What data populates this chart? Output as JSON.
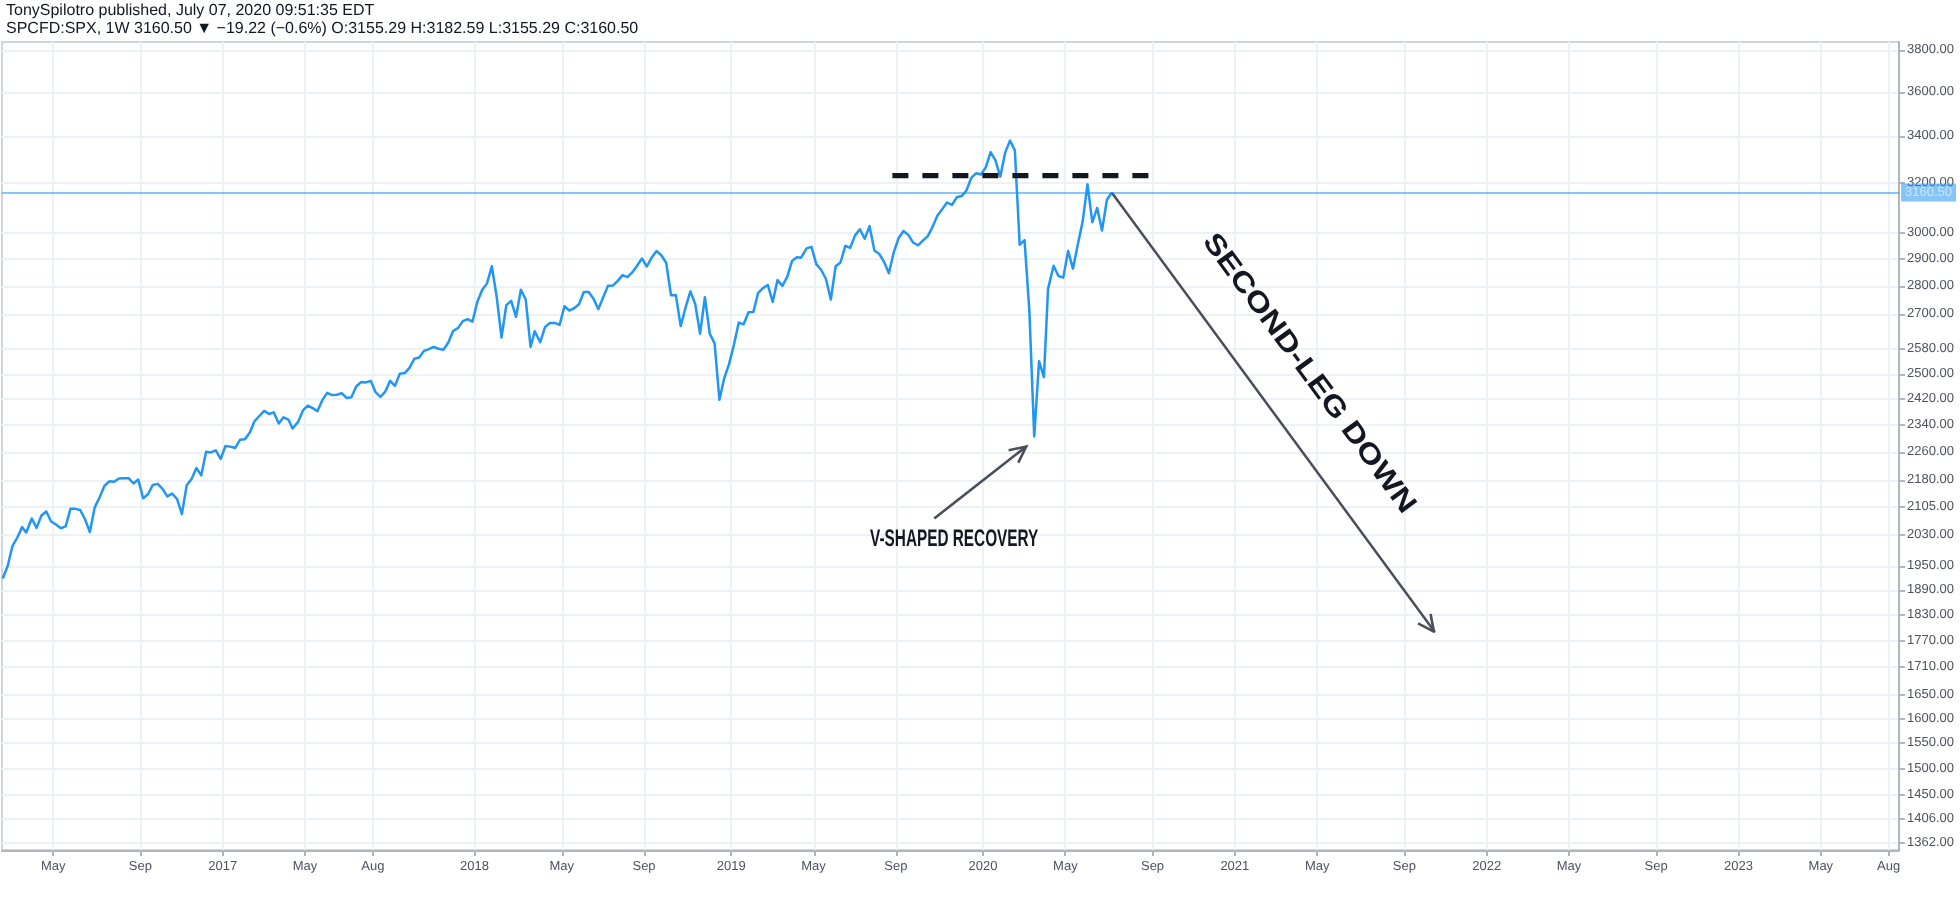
{
  "chart_data": {
    "type": "line",
    "title": "TonySpilotro published, July 07, 2020 09:51:35 EDT",
    "subtitle": "SPCFD:SPX, 1W 3160.50 ▼ −19.22 (−0.6%) O:3155.29 H:3182.59 L:3155.29 C:3160.50",
    "log": "y",
    "grid": true,
    "x": [
      "2016-02-19",
      "2016-02-26",
      "2016-03-04",
      "2016-03-11",
      "2016-03-18",
      "2016-03-24",
      "2016-04-01",
      "2016-04-08",
      "2016-04-15",
      "2016-04-22",
      "2016-04-29",
      "2016-05-06",
      "2016-05-13",
      "2016-05-20",
      "2016-05-27",
      "2016-06-03",
      "2016-06-10",
      "2016-06-17",
      "2016-06-24",
      "2016-07-01",
      "2016-07-08",
      "2016-07-15",
      "2016-07-22",
      "2016-07-29",
      "2016-08-05",
      "2016-08-12",
      "2016-08-19",
      "2016-08-26",
      "2016-09-02",
      "2016-09-09",
      "2016-09-16",
      "2016-09-23",
      "2016-09-30",
      "2016-10-07",
      "2016-10-14",
      "2016-10-21",
      "2016-10-28",
      "2016-11-04",
      "2016-11-11",
      "2016-11-18",
      "2016-11-25",
      "2016-12-02",
      "2016-12-09",
      "2016-12-16",
      "2016-12-23",
      "2016-12-30",
      "2017-01-06",
      "2017-01-13",
      "2017-01-20",
      "2017-01-27",
      "2017-02-03",
      "2017-02-10",
      "2017-02-17",
      "2017-02-24",
      "2017-03-03",
      "2017-03-10",
      "2017-03-17",
      "2017-03-24",
      "2017-03-31",
      "2017-04-07",
      "2017-04-13",
      "2017-04-21",
      "2017-04-28",
      "2017-05-05",
      "2017-05-12",
      "2017-05-19",
      "2017-05-26",
      "2017-06-02",
      "2017-06-09",
      "2017-06-16",
      "2017-06-23",
      "2017-06-30",
      "2017-07-07",
      "2017-07-14",
      "2017-07-21",
      "2017-07-28",
      "2017-08-04",
      "2017-08-11",
      "2017-08-18",
      "2017-08-25",
      "2017-09-01",
      "2017-09-08",
      "2017-09-15",
      "2017-09-22",
      "2017-09-29",
      "2017-10-06",
      "2017-10-13",
      "2017-10-20",
      "2017-10-27",
      "2017-11-03",
      "2017-11-10",
      "2017-11-17",
      "2017-11-24",
      "2017-12-01",
      "2017-12-08",
      "2017-12-15",
      "2017-12-22",
      "2017-12-29",
      "2018-01-05",
      "2018-01-12",
      "2018-01-19",
      "2018-01-26",
      "2018-02-02",
      "2018-02-09",
      "2018-02-16",
      "2018-02-23",
      "2018-03-02",
      "2018-03-09",
      "2018-03-16",
      "2018-03-23",
      "2018-03-29",
      "2018-04-06",
      "2018-04-13",
      "2018-04-20",
      "2018-04-27",
      "2018-05-04",
      "2018-05-11",
      "2018-05-18",
      "2018-05-25",
      "2018-06-01",
      "2018-06-08",
      "2018-06-15",
      "2018-06-22",
      "2018-06-29",
      "2018-07-06",
      "2018-07-13",
      "2018-07-20",
      "2018-07-27",
      "2018-08-03",
      "2018-08-10",
      "2018-08-17",
      "2018-08-24",
      "2018-08-31",
      "2018-09-07",
      "2018-09-14",
      "2018-09-21",
      "2018-09-28",
      "2018-10-05",
      "2018-10-12",
      "2018-10-19",
      "2018-10-26",
      "2018-11-02",
      "2018-11-09",
      "2018-11-16",
      "2018-11-23",
      "2018-11-30",
      "2018-12-07",
      "2018-12-14",
      "2018-12-21",
      "2018-12-28",
      "2019-01-04",
      "2019-01-11",
      "2019-01-18",
      "2019-01-25",
      "2019-02-01",
      "2019-02-08",
      "2019-02-15",
      "2019-02-22",
      "2019-03-01",
      "2019-03-08",
      "2019-03-15",
      "2019-03-22",
      "2019-03-29",
      "2019-04-05",
      "2019-04-12",
      "2019-04-18",
      "2019-04-26",
      "2019-05-03",
      "2019-05-10",
      "2019-05-17",
      "2019-05-24",
      "2019-05-31",
      "2019-06-07",
      "2019-06-14",
      "2019-06-21",
      "2019-06-28",
      "2019-07-05",
      "2019-07-12",
      "2019-07-19",
      "2019-07-26",
      "2019-08-02",
      "2019-08-09",
      "2019-08-16",
      "2019-08-23",
      "2019-08-30",
      "2019-09-06",
      "2019-09-13",
      "2019-09-20",
      "2019-09-27",
      "2019-10-04",
      "2019-10-11",
      "2019-10-18",
      "2019-10-25",
      "2019-11-01",
      "2019-11-08",
      "2019-11-15",
      "2019-11-22",
      "2019-11-29",
      "2019-12-06",
      "2019-12-13",
      "2019-12-20",
      "2019-12-27",
      "2020-01-03",
      "2020-01-10",
      "2020-01-17",
      "2020-01-24",
      "2020-01-31",
      "2020-02-07",
      "2020-02-14",
      "2020-02-21",
      "2020-02-28",
      "2020-03-06",
      "2020-03-13",
      "2020-03-20",
      "2020-03-27",
      "2020-04-03",
      "2020-04-09",
      "2020-04-17",
      "2020-04-24",
      "2020-05-01",
      "2020-05-08",
      "2020-05-15",
      "2020-05-22",
      "2020-05-29",
      "2020-06-05",
      "2020-06-12",
      "2020-06-19",
      "2020-06-26",
      "2020-07-03",
      "2020-07-10"
    ],
    "series": [
      {
        "color": "#2196f3",
        "values": [
          1918,
          1948,
          2000,
          2022,
          2050,
          2036,
          2073,
          2048,
          2081,
          2092,
          2065,
          2057,
          2047,
          2052,
          2099,
          2099,
          2096,
          2071,
          2037,
          2103,
          2130,
          2162,
          2175,
          2174,
          2183,
          2184,
          2184,
          2169,
          2180,
          2128,
          2139,
          2165,
          2168,
          2154,
          2133,
          2141,
          2126,
          2085,
          2164,
          2182,
          2213,
          2192,
          2260,
          2258,
          2264,
          2239,
          2277,
          2275,
          2271,
          2295,
          2297,
          2316,
          2351,
          2367,
          2383,
          2373,
          2378,
          2344,
          2363,
          2356,
          2329,
          2349,
          2384,
          2399,
          2391,
          2382,
          2416,
          2439,
          2432,
          2433,
          2438,
          2423,
          2425,
          2459,
          2473,
          2472,
          2477,
          2441,
          2426,
          2443,
          2477,
          2461,
          2500,
          2502,
          2519,
          2549,
          2553,
          2575,
          2581,
          2588,
          2582,
          2579,
          2602,
          2642,
          2652,
          2676,
          2683,
          2674,
          2743,
          2786,
          2810,
          2873,
          2762,
          2620,
          2732,
          2747,
          2691,
          2787,
          2752,
          2588,
          2641,
          2604,
          2656,
          2670,
          2670,
          2663,
          2728,
          2713,
          2721,
          2735,
          2779,
          2779,
          2755,
          2718,
          2760,
          2801,
          2802,
          2819,
          2840,
          2833,
          2850,
          2875,
          2902,
          2872,
          2905,
          2930,
          2914,
          2886,
          2767,
          2768,
          2659,
          2723,
          2781,
          2736,
          2633,
          2760,
          2633,
          2600,
          2417,
          2486,
          2532,
          2596,
          2671,
          2665,
          2707,
          2708,
          2776,
          2793,
          2804,
          2743,
          2822,
          2801,
          2834,
          2893,
          2907,
          2905,
          2940,
          2946,
          2881,
          2860,
          2826,
          2752,
          2873,
          2887,
          2950,
          2942,
          2990,
          3014,
          2977,
          3026,
          2932,
          2919,
          2889,
          2847,
          2926,
          2979,
          3007,
          2992,
          2962,
          2952,
          2970,
          2986,
          3023,
          3067,
          3093,
          3120,
          3110,
          3141,
          3146,
          3169,
          3221,
          3240,
          3235,
          3265,
          3330,
          3295,
          3226,
          3328,
          3380,
          3338,
          2954,
          2972,
          2711,
          2305,
          2541,
          2489,
          2790,
          2875,
          2837,
          2831,
          2930,
          2864,
          2955,
          3044,
          3194,
          3041,
          3098,
          3009,
          3130,
          3160.5
        ]
      },
      {
        "type": "line",
        "x": [
          "2019-08-28",
          "2020-09-05"
        ],
        "values": [
          3230,
          3230
        ],
        "color": "#131722",
        "line_style": "dashed"
      },
      {
        "type": "line",
        "x": [
          "2020-07-10",
          "2021-10-20"
        ],
        "values": [
          3160.5,
          1790
        ],
        "color": "#4a4e59"
      }
    ],
    "xlim": [
      "2016-02-18",
      "2023-08-22"
    ],
    "xticks": [
      {
        "value": "2016-05-02",
        "label": "May"
      },
      {
        "value": "2016-09-05",
        "label": "Sep"
      },
      {
        "value": "2017-01-02",
        "label": "2017"
      },
      {
        "value": "2017-05-01",
        "label": "May"
      },
      {
        "value": "2017-08-07",
        "label": "Aug"
      },
      {
        "value": "2018-01-01",
        "label": "2018"
      },
      {
        "value": "2018-05-07",
        "label": "May"
      },
      {
        "value": "2018-09-03",
        "label": "Sep"
      },
      {
        "value": "2019-01-07",
        "label": "2019"
      },
      {
        "value": "2019-05-06",
        "label": "May"
      },
      {
        "value": "2019-09-02",
        "label": "Sep"
      },
      {
        "value": "2020-01-06",
        "label": "2020"
      },
      {
        "value": "2020-05-04",
        "label": "May"
      },
      {
        "value": "2020-09-07",
        "label": "Sep"
      },
      {
        "value": "2021-01-04",
        "label": "2021"
      },
      {
        "value": "2021-05-03",
        "label": "May"
      },
      {
        "value": "2021-09-06",
        "label": "Sep"
      },
      {
        "value": "2022-01-03",
        "label": "2022"
      },
      {
        "value": "2022-05-02",
        "label": "May"
      },
      {
        "value": "2022-09-05",
        "label": "Sep"
      },
      {
        "value": "2023-01-02",
        "label": "2023"
      },
      {
        "value": "2023-05-01",
        "label": "May"
      },
      {
        "value": "2023-08-07",
        "label": "Aug"
      }
    ],
    "ylim": [
      1350,
      3840
    ],
    "yticks": [
      {
        "value": 3800,
        "label": "3800.00"
      },
      {
        "value": 3600,
        "label": "3600.00"
      },
      {
        "value": 3400,
        "label": "3400.00"
      },
      {
        "value": 3200,
        "label": "3200.00"
      },
      {
        "value": 3000,
        "label": "3000.00"
      },
      {
        "value": 2900,
        "label": "2900.00"
      },
      {
        "value": 2800,
        "label": "2800.00"
      },
      {
        "value": 2700,
        "label": "2700.00"
      },
      {
        "value": 2580,
        "label": "2580.00"
      },
      {
        "value": 2500,
        "label": "2500.00"
      },
      {
        "value": 2420,
        "label": "2420.00"
      },
      {
        "value": 2340,
        "label": "2340.00"
      },
      {
        "value": 2260,
        "label": "2260.00"
      },
      {
        "value": 2180,
        "label": "2180.00"
      },
      {
        "value": 2105,
        "label": "2105.00"
      },
      {
        "value": 2030,
        "label": "2030.00"
      },
      {
        "value": 1950,
        "label": "1950.00"
      },
      {
        "value": 1890,
        "label": "1890.00"
      },
      {
        "value": 1830,
        "label": "1830.00"
      },
      {
        "value": 1770,
        "label": "1770.00"
      },
      {
        "value": 1710,
        "label": "1710.00"
      },
      {
        "value": 1650,
        "label": "1650.00"
      },
      {
        "value": 1600,
        "label": "1600.00"
      },
      {
        "value": 1550,
        "label": "1550.00"
      },
      {
        "value": 1500,
        "label": "1500.00"
      },
      {
        "value": 1450,
        "label": "1450.00"
      },
      {
        "value": 1406,
        "label": "1406.00"
      },
      {
        "value": 1362,
        "label": "1362.00"
      }
    ],
    "ref_lines": [
      {
        "axis": "y",
        "value": 3160.5,
        "label": "3160.50",
        "color": "#2196f3"
      }
    ],
    "annotations": [
      {
        "text": "V-SHAPED RECOVERY",
        "x": "2020-03-20",
        "y": 2305
      },
      "SECOND-LEG DOWN"
    ]
  }
}
